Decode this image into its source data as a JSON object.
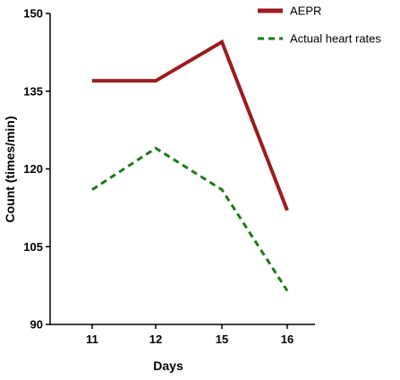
{
  "chart_data": {
    "type": "line",
    "xlabel": "Days",
    "ylabel": "Count (times/min)",
    "categories": [
      "11",
      "12",
      "15",
      "16"
    ],
    "ylim": [
      90,
      150
    ],
    "yticks": [
      "90",
      "105",
      "120",
      "135",
      "150"
    ],
    "grid": false,
    "legend_position": "top-right",
    "series": [
      {
        "name": "AEPR",
        "values": [
          137,
          137,
          144.5,
          112
        ],
        "color": "#9b1c1f",
        "line_style": "solid"
      },
      {
        "name": "Actual heart rates",
        "values": [
          116,
          124,
          116,
          96.5
        ],
        "color": "#1a7a1a",
        "line_style": "dashed"
      }
    ]
  }
}
